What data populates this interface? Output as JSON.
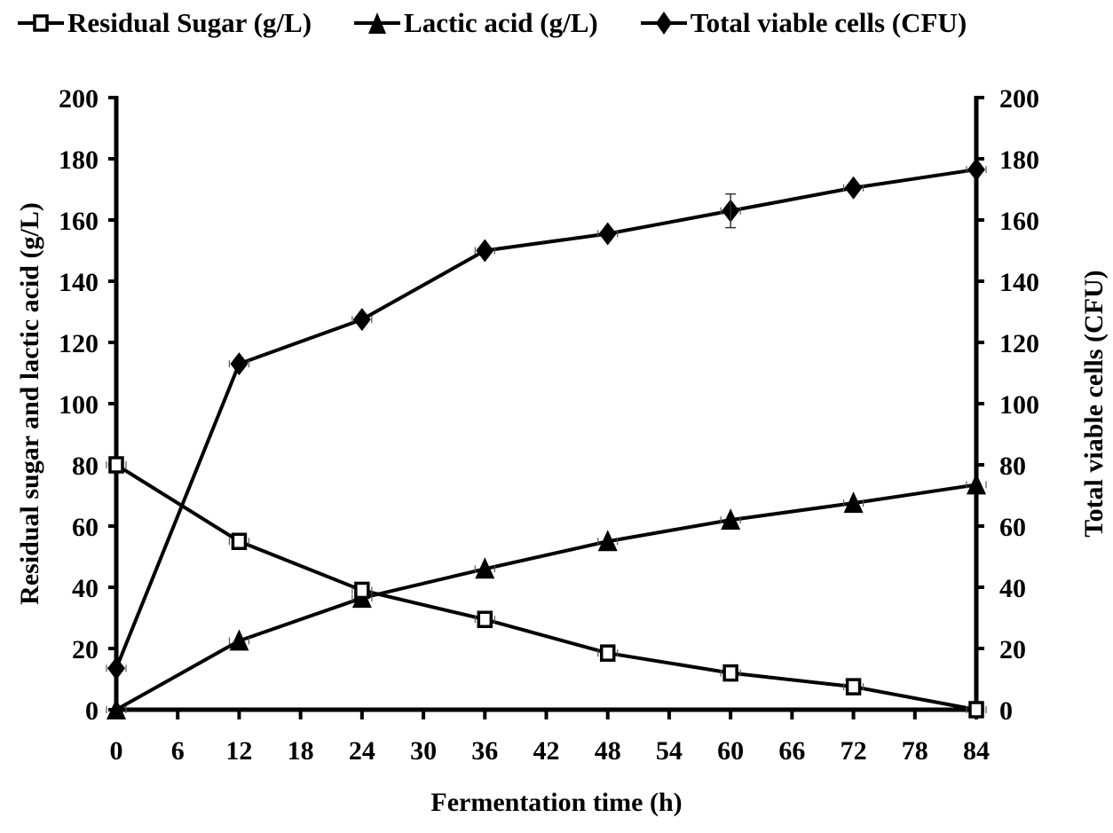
{
  "chart_data": {
    "type": "line",
    "title": "",
    "xlabel": "Fermentation time (h)",
    "ylabel": "Residual sugar and lactic acid (g/L)",
    "ylabel_right": "Total viable cells (CFU)",
    "x": [
      0,
      12,
      24,
      36,
      48,
      60,
      72,
      84
    ],
    "xlim": [
      0,
      84
    ],
    "xticks": [
      0,
      6,
      12,
      18,
      24,
      30,
      36,
      42,
      48,
      54,
      60,
      66,
      72,
      78,
      84
    ],
    "ylim": [
      0,
      200
    ],
    "yticks": [
      0,
      20,
      40,
      60,
      80,
      100,
      120,
      140,
      160,
      180,
      200
    ],
    "ylim_right": [
      0,
      200
    ],
    "yticks_right": [
      0,
      20,
      40,
      60,
      80,
      100,
      120,
      140,
      160,
      180,
      200
    ],
    "grid": false,
    "legend_position": "top",
    "series": [
      {
        "name": "Residual Sugar (g/L)",
        "marker": "open-square",
        "axis": "left",
        "values": [
          80,
          55,
          39,
          29.5,
          18.5,
          12,
          7.5,
          0
        ]
      },
      {
        "name": "Lactic acid (g/L)",
        "marker": "filled-triangle",
        "axis": "left",
        "values": [
          0,
          22.5,
          36.5,
          46,
          55,
          62,
          67.5,
          73.5
        ]
      },
      {
        "name": "Total viable cells (CFU)",
        "marker": "filled-diamond",
        "axis": "right",
        "values": [
          13.5,
          113,
          127.5,
          150,
          155.5,
          163,
          170.5,
          176.5
        ]
      }
    ]
  },
  "legend": {
    "items": [
      {
        "label": "Residual Sugar (g/L)",
        "icon": "open-square-marker-icon"
      },
      {
        "label": "Lactic acid (g/L)",
        "icon": "filled-triangle-marker-icon"
      },
      {
        "label": "Total viable cells (CFU)",
        "icon": "filled-diamond-marker-icon"
      }
    ]
  },
  "colors": {
    "line": "#000000",
    "background": "#ffffff"
  }
}
